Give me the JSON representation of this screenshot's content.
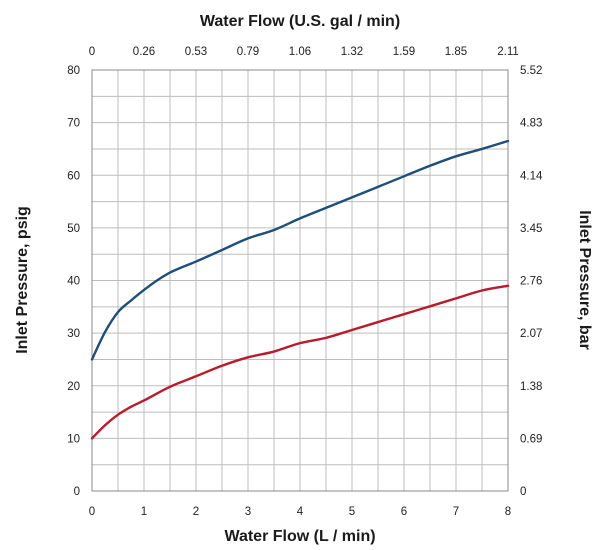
{
  "chart_data": {
    "type": "line",
    "title": "",
    "xlabel": "Water Flow (L / min)",
    "x2label": "Water Flow (U.S. gal / min)",
    "ylabel": "Inlet Pressure, psig",
    "y2label": "Inlet Pressure, bar",
    "xlim": [
      0,
      8
    ],
    "ylim": [
      0,
      80
    ],
    "grid": true,
    "x_ticks": [
      "0",
      "1",
      "2",
      "3",
      "4",
      "5",
      "6",
      "7",
      "8"
    ],
    "x2_ticks": [
      "0",
      "0.26",
      "0.53",
      "0.79",
      "1.06",
      "1.32",
      "1.59",
      "1.85",
      "2.11"
    ],
    "y_ticks": [
      "0",
      "10",
      "20",
      "30",
      "40",
      "50",
      "60",
      "70",
      "80"
    ],
    "y2_ticks": [
      "0",
      "0.69",
      "1.38",
      "2.07",
      "2.76",
      "3.45",
      "4.14",
      "4.83",
      "5.52"
    ],
    "series": [
      {
        "color": "#1f4e79",
        "x": [
          0,
          0.25,
          0.5,
          0.75,
          1,
          1.25,
          1.5,
          1.75,
          2,
          2.5,
          3,
          3.5,
          4,
          4.5,
          5,
          5.5,
          6,
          6.5,
          7,
          7.5,
          8
        ],
        "y": [
          25,
          30.2,
          34,
          36.2,
          38.2,
          40,
          41.5,
          42.6,
          43.6,
          45.8,
          48,
          49.6,
          51.8,
          53.8,
          55.8,
          57.8,
          59.8,
          61.8,
          63.6,
          65,
          66.5
        ]
      },
      {
        "color": "#b71c2c",
        "x": [
          0,
          0.25,
          0.5,
          0.75,
          1,
          1.5,
          2,
          2.5,
          3,
          3.5,
          4,
          4.5,
          5,
          5.5,
          6,
          6.5,
          7,
          7.5,
          8
        ],
        "y": [
          10,
          12.5,
          14.5,
          16,
          17.2,
          19.8,
          21.8,
          23.8,
          25.4,
          26.5,
          28.1,
          29.1,
          30.6,
          32.1,
          33.6,
          35.1,
          36.6,
          38.1,
          39
        ]
      }
    ]
  }
}
